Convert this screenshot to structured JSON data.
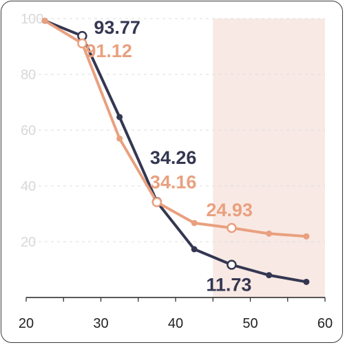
{
  "chart_data": {
    "type": "line",
    "title": "",
    "xlabel": "",
    "ylabel": "",
    "xlim": [
      20,
      60
    ],
    "ylim": [
      0,
      100
    ],
    "x_ticks": [
      20,
      30,
      40,
      50,
      60
    ],
    "y_ticks": [
      20,
      40,
      60,
      80,
      100
    ],
    "grid": "horizontal dashed",
    "highlight_band": {
      "x0": 45,
      "x1": 60,
      "color": "#f8e9e4"
    },
    "series": [
      {
        "color": "#343751",
        "x": [
          22.5,
          27.5,
          32.5,
          37.5,
          42.5,
          47.5,
          52.5,
          57.5
        ],
        "y": [
          99.2,
          93.77,
          64.7,
          34.26,
          17.3,
          11.73,
          8.0,
          5.6
        ],
        "highlight_index": [
          1,
          3,
          5
        ]
      },
      {
        "color": "#e9a07f",
        "x": [
          22.5,
          27.5,
          32.5,
          37.5,
          42.5,
          47.5,
          52.5,
          57.5
        ],
        "y": [
          99.2,
          91.12,
          57.0,
          34.16,
          26.7,
          24.93,
          22.9,
          21.9
        ],
        "highlight_index": [
          1,
          3,
          5
        ]
      }
    ],
    "annotations": [
      {
        "text": "93.77",
        "series": 0,
        "index": 1,
        "color": "#343751"
      },
      {
        "text": "91.12",
        "series": 1,
        "index": 1,
        "color": "#e9a07f"
      },
      {
        "text": "34.26",
        "series": 0,
        "index": 3,
        "color": "#343751"
      },
      {
        "text": "34.16",
        "series": 1,
        "index": 3,
        "color": "#e9a07f"
      },
      {
        "text": "24.93",
        "series": 1,
        "index": 5,
        "color": "#e9a07f"
      },
      {
        "text": "11.73",
        "series": 0,
        "index": 5,
        "color": "#343751"
      }
    ]
  }
}
